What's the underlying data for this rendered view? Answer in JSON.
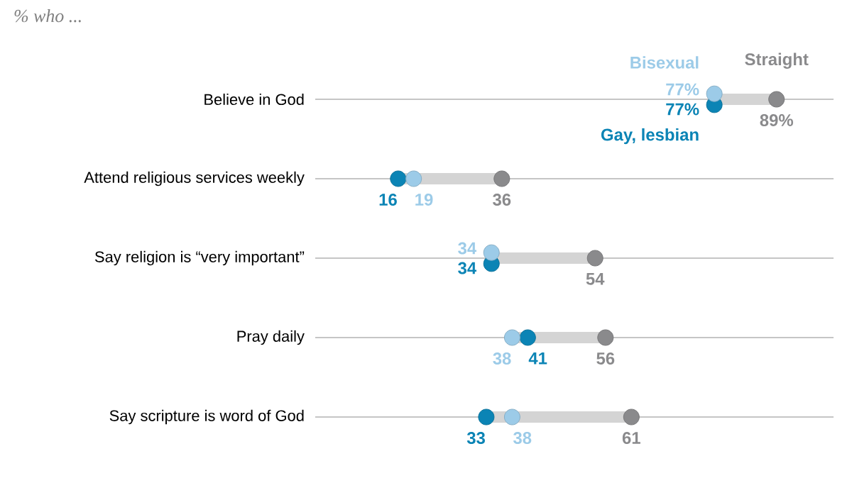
{
  "chart_data": {
    "type": "scatter",
    "orientation": "horizontal",
    "title": "% who ...",
    "categories": [
      "Believe in God",
      "Attend religious services weekly",
      "Say religion is “very important”",
      "Pray daily",
      "Say scripture is word of God"
    ],
    "xlim": [
      0,
      100
    ],
    "tick_labels": "y",
    "grid": "y",
    "marker": "circle",
    "series": [
      {
        "name": "Gay, lesbian",
        "color": "#0b84b5",
        "values": [
          77,
          16,
          34,
          41,
          33
        ],
        "value_labels": [
          "77%",
          "16",
          "34",
          "41",
          "33"
        ]
      },
      {
        "name": "Bisexual",
        "color": "#9ccbe8",
        "values": [
          77,
          19,
          34,
          38,
          38
        ],
        "value_labels": [
          "77%",
          "19",
          "34",
          "38",
          "38"
        ]
      },
      {
        "name": "Straight",
        "color": "#8a8a8c",
        "values": [
          89,
          36,
          54,
          56,
          61
        ],
        "value_labels": [
          "89%",
          "36",
          "54",
          "56",
          "61"
        ]
      }
    ]
  }
}
